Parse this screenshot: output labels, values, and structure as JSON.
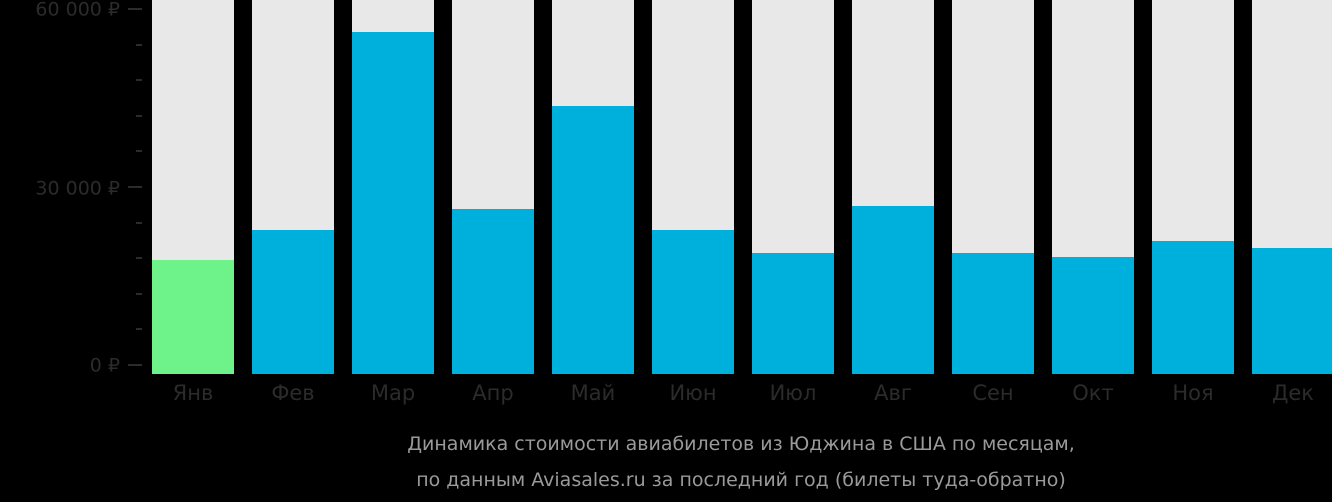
{
  "chart_data": {
    "type": "bar",
    "title": "Динамика стоимости авиабилетов из Юджина в США по месяцам,",
    "subtitle": "по данным Aviasales.ru за последний год (билеты туда-обратно)",
    "xlabel": "",
    "ylabel": "",
    "currency": "₽",
    "categories": [
      "Янв",
      "Фев",
      "Мар",
      "Апр",
      "Май",
      "Июн",
      "Июл",
      "Авг",
      "Сен",
      "Окт",
      "Ноя",
      "Дек"
    ],
    "values": [
      18290,
      23100,
      54870,
      26470,
      42990,
      23100,
      19410,
      26950,
      19410,
      18770,
      21340,
      20210
    ],
    "ylim": [
      0,
      60000
    ],
    "y_ticks": [
      {
        "value": 0,
        "label": "0 ₽"
      },
      {
        "value": 30000,
        "label": "30 000 ₽"
      },
      {
        "value": 60000,
        "label": "60 000 ₽"
      }
    ],
    "minor_ticks_between_majors": 4,
    "highlight_index": 0,
    "grid": false,
    "legend": "none",
    "colors": {
      "bar": "#00b0dc",
      "highlight": "#6ef28a",
      "track": "#e8e8e8",
      "background": "#000000",
      "axis_text": "#2b2b2b",
      "caption_text": "#9a9a9a"
    }
  },
  "axis": {
    "y_label_60000": "60 000 ₽",
    "y_label_30000": "30 000 ₽",
    "y_label_0": "0 ₽"
  },
  "caption": {
    "line1": "Динамика стоимости авиабилетов из Юджина в США по месяцам,",
    "line2": "по данным Aviasales.ru за последний год (билеты туда-обратно)"
  }
}
